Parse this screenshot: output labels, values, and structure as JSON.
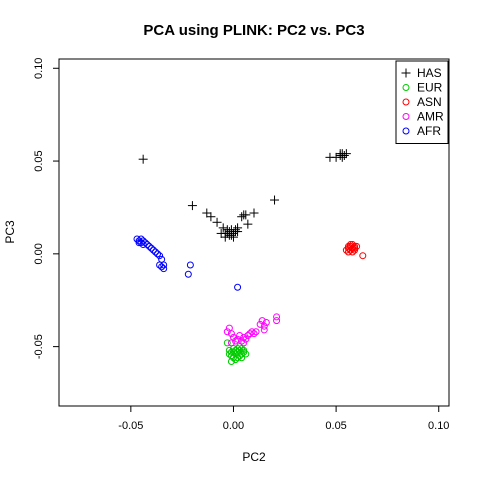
{
  "chart_data": {
    "type": "scatter",
    "title": "PCA using PLINK: PC2 vs. PC3",
    "xlabel": "PC2",
    "ylabel": "PC3",
    "xlim": [
      -0.085,
      0.105
    ],
    "ylim": [
      -0.082,
      0.105
    ],
    "x_ticks": [
      "-0.05",
      "0.00",
      "0.05",
      "0.10"
    ],
    "y_ticks": [
      "-0.05",
      "0.00",
      "0.05",
      "0.10"
    ],
    "grid": false,
    "legend_position": "top-right",
    "series": [
      {
        "name": "HAS",
        "marker": "plus",
        "color": "#000000",
        "points": [
          [
            -0.044,
            0.051
          ],
          [
            -0.02,
            0.026
          ],
          [
            -0.013,
            0.022
          ],
          [
            -0.011,
            0.02
          ],
          [
            -0.008,
            0.017
          ],
          [
            -0.005,
            0.014
          ],
          [
            -0.006,
            0.011
          ],
          [
            -0.004,
            0.009
          ],
          [
            -0.003,
            0.011
          ],
          [
            -0.002,
            0.012
          ],
          [
            -0.001,
            0.01
          ],
          [
            0.0,
            0.011
          ],
          [
            0.001,
            0.012
          ],
          [
            -0.003,
            0.013
          ],
          [
            -0.002,
            0.01
          ],
          [
            -0.004,
            0.011
          ],
          [
            0.001,
            0.013
          ],
          [
            0.002,
            0.012
          ],
          [
            -0.001,
            0.013
          ],
          [
            0.0,
            0.009
          ],
          [
            0.002,
            0.014
          ],
          [
            0.004,
            0.02
          ],
          [
            0.005,
            0.021
          ],
          [
            0.006,
            0.021
          ],
          [
            0.007,
            0.016
          ],
          [
            0.01,
            0.022
          ],
          [
            0.02,
            0.029
          ],
          [
            0.047,
            0.052
          ],
          [
            0.05,
            0.052
          ],
          [
            0.052,
            0.053
          ],
          [
            0.053,
            0.054
          ],
          [
            0.054,
            0.053
          ],
          [
            0.053,
            0.052
          ],
          [
            0.055,
            0.054
          ],
          [
            0.052,
            0.054
          ]
        ]
      },
      {
        "name": "EUR",
        "marker": "circle",
        "color": "#00cc00",
        "points": [
          [
            -0.003,
            -0.048
          ],
          [
            -0.002,
            -0.054
          ],
          [
            -0.001,
            -0.055
          ],
          [
            0.0,
            -0.056
          ],
          [
            0.001,
            -0.057
          ],
          [
            0.0,
            -0.053
          ],
          [
            -0.002,
            -0.052
          ],
          [
            0.001,
            -0.054
          ],
          [
            0.002,
            -0.053
          ],
          [
            0.003,
            -0.052
          ],
          [
            0.004,
            -0.051
          ],
          [
            0.005,
            -0.052
          ],
          [
            0.004,
            -0.054
          ],
          [
            0.003,
            -0.055
          ],
          [
            0.002,
            -0.056
          ],
          [
            0.005,
            -0.053
          ],
          [
            -0.001,
            -0.058
          ],
          [
            0.001,
            -0.052
          ],
          [
            0.002,
            -0.051
          ],
          [
            0.006,
            -0.054
          ],
          [
            0.0,
            -0.051
          ],
          [
            -0.001,
            -0.053
          ],
          [
            0.004,
            -0.056
          ],
          [
            0.003,
            -0.05
          ]
        ]
      },
      {
        "name": "ASN",
        "marker": "circle",
        "color": "#ff0000",
        "points": [
          [
            0.055,
            0.002
          ],
          [
            0.056,
            0.003
          ],
          [
            0.057,
            0.004
          ],
          [
            0.058,
            0.005
          ],
          [
            0.059,
            0.004
          ],
          [
            0.057,
            0.002
          ],
          [
            0.058,
            0.003
          ],
          [
            0.059,
            0.002
          ],
          [
            0.056,
            0.004
          ],
          [
            0.057,
            0.005
          ],
          [
            0.058,
            0.001
          ],
          [
            0.056,
            0.001
          ],
          [
            0.059,
            0.003
          ],
          [
            0.06,
            0.004
          ],
          [
            0.063,
            -0.001
          ]
        ]
      },
      {
        "name": "AMR",
        "marker": "circle",
        "color": "#ff00ff",
        "points": [
          [
            -0.002,
            -0.04
          ],
          [
            -0.003,
            -0.042
          ],
          [
            -0.001,
            -0.043
          ],
          [
            0.0,
            -0.045
          ],
          [
            0.002,
            -0.046
          ],
          [
            0.003,
            -0.044
          ],
          [
            0.005,
            -0.045
          ],
          [
            0.006,
            -0.046
          ],
          [
            0.007,
            -0.044
          ],
          [
            0.008,
            -0.043
          ],
          [
            0.01,
            -0.043
          ],
          [
            0.011,
            -0.042
          ],
          [
            0.013,
            -0.038
          ],
          [
            0.014,
            -0.036
          ],
          [
            0.015,
            -0.039
          ],
          [
            0.016,
            -0.037
          ],
          [
            0.015,
            -0.041
          ],
          [
            0.021,
            -0.034
          ],
          [
            0.021,
            -0.036
          ],
          [
            0.009,
            -0.042
          ],
          [
            -0.001,
            -0.048
          ],
          [
            0.001,
            -0.047
          ],
          [
            0.004,
            -0.047
          ],
          [
            0.005,
            -0.048
          ]
        ]
      },
      {
        "name": "AFR",
        "marker": "circle",
        "color": "#0000ff",
        "points": [
          [
            -0.047,
            0.008
          ],
          [
            -0.046,
            0.007
          ],
          [
            -0.045,
            0.008
          ],
          [
            -0.044,
            0.007
          ],
          [
            -0.043,
            0.006
          ],
          [
            -0.042,
            0.005
          ],
          [
            -0.041,
            0.004
          ],
          [
            -0.04,
            0.003
          ],
          [
            -0.039,
            0.002
          ],
          [
            -0.038,
            0.001
          ],
          [
            -0.037,
            0.0
          ],
          [
            -0.036,
            -0.001
          ],
          [
            -0.035,
            -0.003
          ],
          [
            -0.036,
            -0.006
          ],
          [
            -0.035,
            -0.007
          ],
          [
            -0.034,
            -0.008
          ],
          [
            -0.034,
            -0.006
          ],
          [
            -0.046,
            0.006
          ],
          [
            -0.045,
            0.006
          ],
          [
            -0.044,
            0.005
          ],
          [
            -0.022,
            -0.011
          ],
          [
            -0.021,
            -0.006
          ],
          [
            0.002,
            -0.018
          ]
        ]
      }
    ]
  }
}
